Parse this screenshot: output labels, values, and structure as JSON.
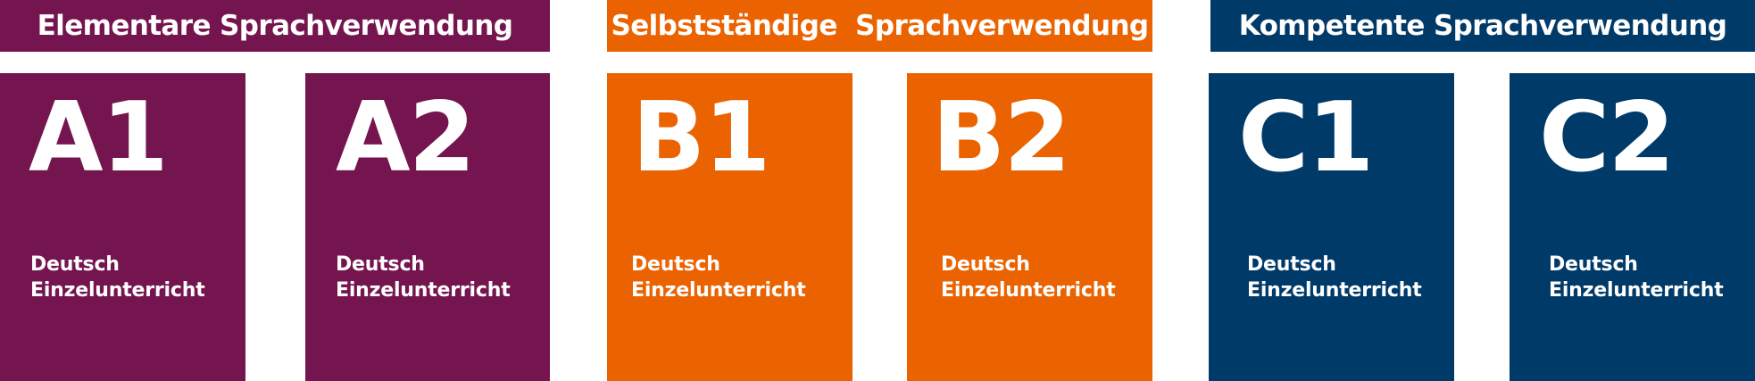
{
  "colors": {
    "elementary": "#75154f",
    "independent": "#ea6300",
    "proficient": "#003a69"
  },
  "groups": [
    {
      "label": "Elementare Sprachverwendung"
    },
    {
      "label": "Selbstständige  Sprachverwendung"
    },
    {
      "label": "Kompetente Sprachverwendung"
    }
  ],
  "levels": [
    {
      "code": "A1",
      "line1": "Deutsch",
      "line2": "Einzelunterricht"
    },
    {
      "code": "A2",
      "line1": "Deutsch",
      "line2": "Einzelunterricht"
    },
    {
      "code": "B1",
      "line1": "Deutsch",
      "line2": "Einzelunterricht"
    },
    {
      "code": "B2",
      "line1": "Deutsch",
      "line2": "Einzelunterricht"
    },
    {
      "code": "C1",
      "line1": "Deutsch",
      "line2": "Einzelunterricht"
    },
    {
      "code": "C2",
      "line1": "Deutsch",
      "line2": "Einzelunterricht"
    }
  ]
}
